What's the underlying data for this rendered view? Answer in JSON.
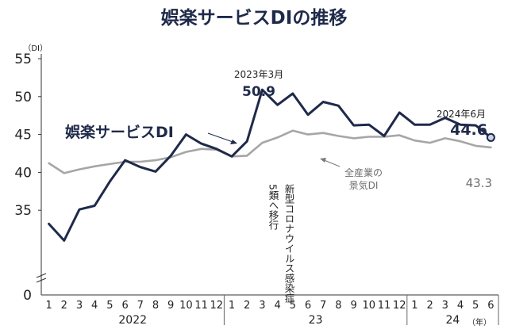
{
  "chart_data": {
    "type": "line",
    "title": "娯楽サービスDIの推移",
    "y_unit_label": "（DI）",
    "x_unit_label": "（年）",
    "ylim": [
      30,
      55
    ],
    "yticks": [
      55,
      50,
      45,
      40,
      35,
      0
    ],
    "axis_break": true,
    "categories": [
      "1",
      "2",
      "3",
      "4",
      "5",
      "6",
      "7",
      "8",
      "9",
      "10",
      "11",
      "12",
      "1",
      "2",
      "3",
      "4",
      "5",
      "6",
      "7",
      "8",
      "9",
      "10",
      "11",
      "12",
      "1",
      "2",
      "3",
      "4",
      "5",
      "6"
    ],
    "year_labels": [
      "2022",
      "23",
      "24"
    ],
    "series": [
      {
        "name": "娯楽サービスDI",
        "color": "#1f2a4a",
        "values": [
          33.2,
          31.0,
          35.1,
          35.6,
          38.8,
          41.6,
          40.7,
          40.1,
          42.2,
          45.0,
          43.8,
          43.1,
          42.1,
          44.1,
          50.9,
          48.9,
          50.4,
          47.6,
          49.3,
          48.8,
          46.2,
          46.3,
          44.8,
          47.9,
          46.3,
          46.3,
          47.2,
          46.3,
          46.2,
          44.6
        ]
      },
      {
        "name": "全産業の景気DI",
        "color": "#a6a6a6",
        "values": [
          41.2,
          39.9,
          40.4,
          40.8,
          41.1,
          41.4,
          41.4,
          41.6,
          42.0,
          42.7,
          43.1,
          43.0,
          42.1,
          42.2,
          43.9,
          44.6,
          45.5,
          45.0,
          45.2,
          44.8,
          44.5,
          44.7,
          44.7,
          44.9,
          44.2,
          43.9,
          44.5,
          44.1,
          43.5,
          43.3
        ]
      }
    ],
    "annotations": {
      "peak_date": "2023年3月",
      "peak_value": "50.9",
      "last_date": "2024年6月",
      "last_value": "44.6",
      "gray_last_value": "43.3",
      "series_label_dark": "娯楽サービスDI",
      "series_label_gray_line1": "全産業の",
      "series_label_gray_line2": "景気DI",
      "event_line1": "新型コロナウイルス感染症",
      "event_line2": "5類へ移行"
    },
    "grid": false
  }
}
